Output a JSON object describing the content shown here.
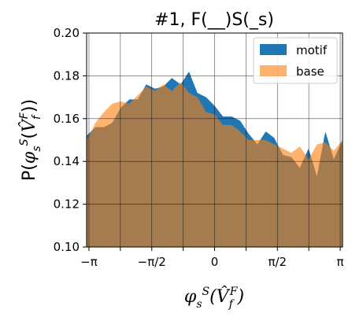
{
  "chart_data": {
    "type": "area",
    "title": "#1, F(__)S(_s)",
    "xlabel": "φsS(V̂fF)",
    "ylabel": "P(φsS(V̂fF))",
    "xlim": [
      -3.2,
      3.2
    ],
    "ylim": [
      0.1,
      0.2
    ],
    "grid": true,
    "legend_placement": "top-right",
    "x_ticks": [
      {
        "value": -3.14159,
        "label": "−π"
      },
      {
        "value": -1.5708,
        "label": "−π/2"
      },
      {
        "value": 0,
        "label": "0"
      },
      {
        "value": 1.5708,
        "label": "π/2"
      },
      {
        "value": 3.14159,
        "label": "π"
      }
    ],
    "x_gridlines": [
      -3.14159,
      -2.35619,
      -1.5708,
      -0.7854,
      0,
      0.7854,
      1.5708,
      2.35619,
      3.14159
    ],
    "y_ticks": [
      {
        "value": 0.1,
        "label": "0.10"
      },
      {
        "value": 0.12,
        "label": "0.12"
      },
      {
        "value": 0.14,
        "label": "0.14"
      },
      {
        "value": 0.16,
        "label": "0.16"
      },
      {
        "value": 0.18,
        "label": "0.18"
      },
      {
        "value": 0.2,
        "label": "0.20"
      }
    ],
    "x": [
      -3.2,
      -2.98,
      -2.77,
      -2.56,
      -2.35,
      -2.13,
      -1.92,
      -1.71,
      -1.49,
      -1.28,
      -1.07,
      -0.85,
      -0.64,
      -0.43,
      -0.21,
      0.0,
      0.21,
      0.43,
      0.64,
      0.85,
      1.07,
      1.28,
      1.49,
      1.71,
      1.92,
      2.13,
      2.35,
      2.56,
      2.77,
      2.98,
      3.2
    ],
    "series": [
      {
        "name": "motif",
        "color": "#1f77b4",
        "values": [
          0.152,
          0.156,
          0.156,
          0.158,
          0.165,
          0.169,
          0.169,
          0.176,
          0.174,
          0.175,
          0.179,
          0.176,
          0.182,
          0.172,
          0.17,
          0.166,
          0.161,
          0.161,
          0.159,
          0.153,
          0.148,
          0.154,
          0.151,
          0.143,
          0.142,
          0.137,
          0.146,
          0.133,
          0.154,
          0.141,
          0.15
        ]
      },
      {
        "name": "base",
        "color": "#ff7f0e",
        "values": [
          0.15,
          0.158,
          0.163,
          0.167,
          0.168,
          0.167,
          0.171,
          0.175,
          0.173,
          0.176,
          0.173,
          0.177,
          0.172,
          0.17,
          0.163,
          0.162,
          0.157,
          0.157,
          0.154,
          0.15,
          0.15,
          0.15,
          0.148,
          0.146,
          0.144,
          0.147,
          0.141,
          0.148,
          0.149,
          0.145,
          0.15
        ]
      }
    ]
  }
}
